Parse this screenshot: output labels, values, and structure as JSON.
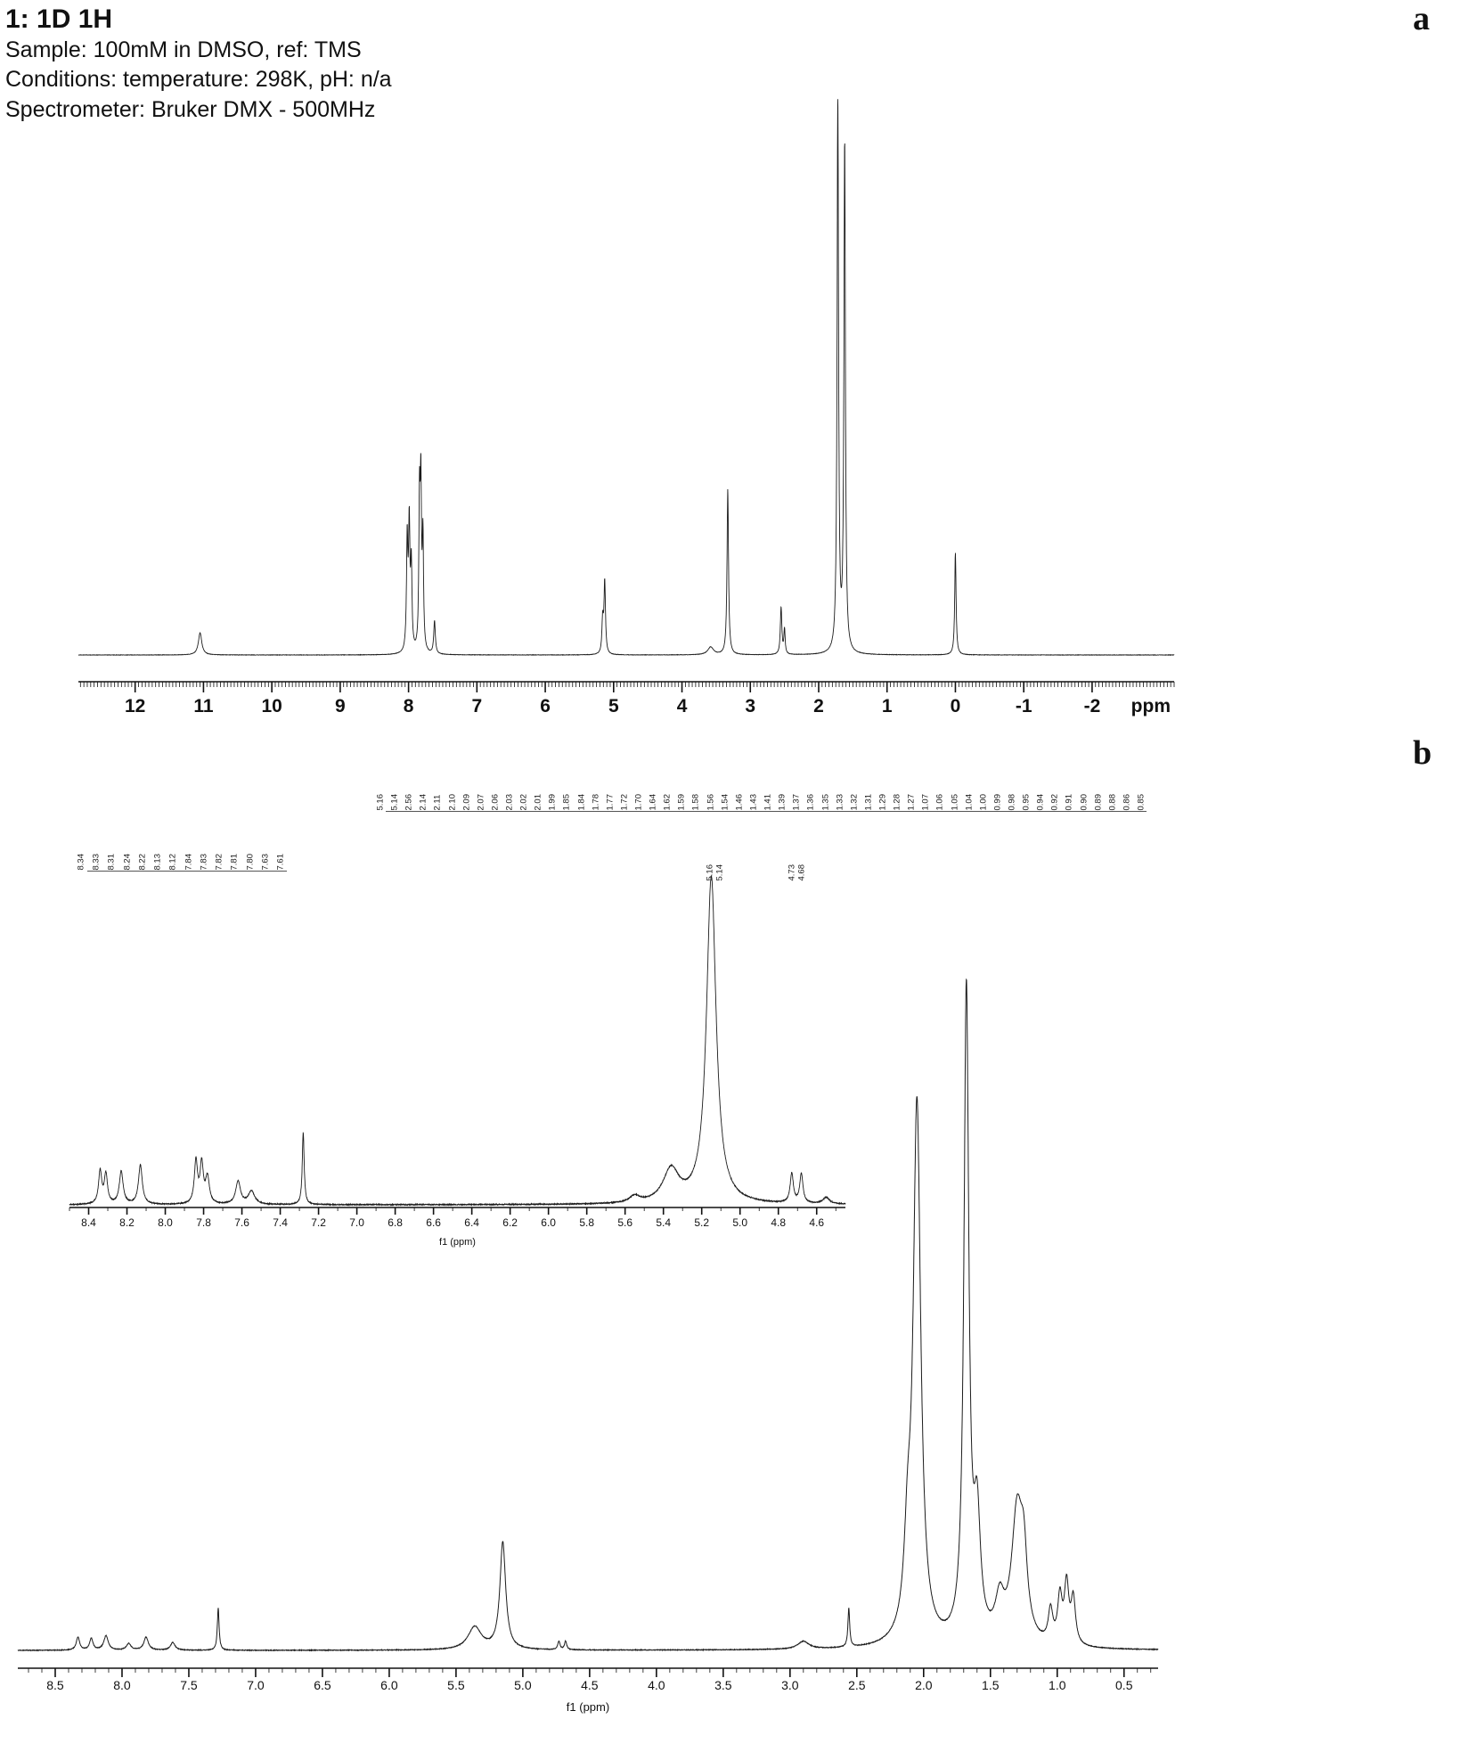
{
  "header": {
    "title": "1: 1D 1H",
    "sample": "Sample: 100mM in DMSO, ref: TMS",
    "conditions": "Conditions: temperature: 298K, pH: n/a",
    "spectrometer": "Spectrometer: Bruker DMX - 500MHz"
  },
  "panel_labels": {
    "a": "a",
    "b": "b"
  },
  "colors": {
    "line": "#1c1c1c",
    "axis": "#111111",
    "text": "#111111"
  },
  "chart_data": [
    {
      "id": "spectrum-a",
      "type": "line",
      "title": "1D 1H NMR full spectrum",
      "xlabel": "ppm",
      "x_range": [
        12.83,
        -3.2
      ],
      "x_ticks": [
        "12",
        "11",
        "10",
        "9",
        "8",
        "7",
        "6",
        "5",
        "4",
        "3",
        "2",
        "1",
        "0",
        "-1",
        "-2"
      ],
      "peaks": [
        {
          "ppm": 11.05,
          "h": 0.04,
          "w": 0.03
        },
        {
          "ppm": 8.02,
          "h": 0.2,
          "w": 0.012
        },
        {
          "ppm": 7.99,
          "h": 0.22,
          "w": 0.012
        },
        {
          "ppm": 7.96,
          "h": 0.15,
          "w": 0.012
        },
        {
          "ppm": 7.84,
          "h": 0.26,
          "w": 0.011
        },
        {
          "ppm": 7.82,
          "h": 0.28,
          "w": 0.011
        },
        {
          "ppm": 7.79,
          "h": 0.2,
          "w": 0.011
        },
        {
          "ppm": 7.62,
          "h": 0.06,
          "w": 0.014
        },
        {
          "ppm": 5.16,
          "h": 0.06,
          "w": 0.013
        },
        {
          "ppm": 5.13,
          "h": 0.13,
          "w": 0.013
        },
        {
          "ppm": 3.58,
          "h": 0.014,
          "w": 0.05
        },
        {
          "ppm": 3.33,
          "h": 0.3,
          "w": 0.013
        },
        {
          "ppm": 2.55,
          "h": 0.085,
          "w": 0.013
        },
        {
          "ppm": 2.5,
          "h": 0.045,
          "w": 0.011
        },
        {
          "ppm": 1.72,
          "h": 1.0,
          "w": 0.013
        },
        {
          "ppm": 1.62,
          "h": 0.92,
          "w": 0.013
        },
        {
          "ppm": 0.0,
          "h": 0.185,
          "w": 0.012
        }
      ]
    },
    {
      "id": "spectrum-b-main",
      "type": "line",
      "title": "1D 1H NMR expanded spectrum",
      "xlabel": "f1 (ppm)",
      "x_range": [
        8.78,
        0.245
      ],
      "x_ticks": [
        "8.5",
        "8.0",
        "7.5",
        "7.0",
        "6.5",
        "6.0",
        "5.5",
        "5.0",
        "4.5",
        "4.0",
        "3.5",
        "3.0",
        "2.5",
        "2.0",
        "1.5",
        "1.0",
        "0.5"
      ],
      "peaks": [
        {
          "ppm": 8.33,
          "h": 0.02,
          "w": 0.015
        },
        {
          "ppm": 8.23,
          "h": 0.018,
          "w": 0.015
        },
        {
          "ppm": 8.12,
          "h": 0.022,
          "w": 0.02
        },
        {
          "ppm": 7.95,
          "h": 0.01,
          "w": 0.02
        },
        {
          "ppm": 7.82,
          "h": 0.02,
          "w": 0.02
        },
        {
          "ppm": 7.62,
          "h": 0.012,
          "w": 0.02
        },
        {
          "ppm": 7.28,
          "h": 0.065,
          "w": 0.008
        },
        {
          "ppm": 5.36,
          "h": 0.035,
          "w": 0.06
        },
        {
          "ppm": 5.15,
          "h": 0.165,
          "w": 0.026
        },
        {
          "ppm": 4.73,
          "h": 0.013,
          "w": 0.01
        },
        {
          "ppm": 4.68,
          "h": 0.013,
          "w": 0.01
        },
        {
          "ppm": 2.9,
          "h": 0.012,
          "w": 0.05
        },
        {
          "ppm": 2.56,
          "h": 0.06,
          "w": 0.008
        },
        {
          "ppm": 2.12,
          "h": 0.12,
          "w": 0.03
        },
        {
          "ppm": 2.05,
          "h": 0.83,
          "w": 0.034
        },
        {
          "ppm": 1.68,
          "h": 1.0,
          "w": 0.022
        },
        {
          "ppm": 1.6,
          "h": 0.18,
          "w": 0.03
        },
        {
          "ppm": 1.43,
          "h": 0.06,
          "w": 0.04
        },
        {
          "ppm": 1.3,
          "h": 0.2,
          "w": 0.05
        },
        {
          "ppm": 1.25,
          "h": 0.1,
          "w": 0.03
        },
        {
          "ppm": 1.05,
          "h": 0.05,
          "w": 0.02
        },
        {
          "ppm": 0.98,
          "h": 0.07,
          "w": 0.02
        },
        {
          "ppm": 0.93,
          "h": 0.09,
          "w": 0.02
        },
        {
          "ppm": 0.88,
          "h": 0.07,
          "w": 0.02
        }
      ]
    },
    {
      "id": "spectrum-b-inset",
      "type": "line",
      "title": "Inset expansion 8.5–4.5 ppm",
      "xlabel": "f1 (ppm)",
      "x_range": [
        8.5,
        4.45
      ],
      "x_ticks": [
        "8.4",
        "8.2",
        "8.0",
        "7.8",
        "7.6",
        "7.4",
        "7.2",
        "7.0",
        "6.8",
        "6.6",
        "6.4",
        "6.2",
        "6.0",
        "5.8",
        "5.6",
        "5.4",
        "5.2",
        "5.0",
        "4.8",
        "4.6"
      ],
      "peaks": [
        {
          "ppm": 8.34,
          "h": 0.1,
          "w": 0.01
        },
        {
          "ppm": 8.31,
          "h": 0.09,
          "w": 0.01
        },
        {
          "ppm": 8.23,
          "h": 0.1,
          "w": 0.012
        },
        {
          "ppm": 8.13,
          "h": 0.12,
          "w": 0.012
        },
        {
          "ppm": 7.84,
          "h": 0.13,
          "w": 0.01
        },
        {
          "ppm": 7.81,
          "h": 0.12,
          "w": 0.01
        },
        {
          "ppm": 7.78,
          "h": 0.08,
          "w": 0.012
        },
        {
          "ppm": 7.62,
          "h": 0.07,
          "w": 0.015
        },
        {
          "ppm": 7.55,
          "h": 0.04,
          "w": 0.02
        },
        {
          "ppm": 7.28,
          "h": 0.22,
          "w": 0.006
        },
        {
          "ppm": 5.55,
          "h": 0.02,
          "w": 0.03
        },
        {
          "ppm": 5.36,
          "h": 0.1,
          "w": 0.05
        },
        {
          "ppm": 5.15,
          "h": 1.0,
          "w": 0.03
        },
        {
          "ppm": 4.73,
          "h": 0.09,
          "w": 0.01
        },
        {
          "ppm": 4.68,
          "h": 0.09,
          "w": 0.01
        },
        {
          "ppm": 4.55,
          "h": 0.02,
          "w": 0.02
        }
      ]
    }
  ],
  "peak_labels": {
    "b_top": [
      "5.16",
      "5.14",
      "2.56",
      "2.14",
      "2.11",
      "2.10",
      "2.09",
      "2.07",
      "2.06",
      "2.03",
      "2.02",
      "2.01",
      "1.99",
      "1.85",
      "1.84",
      "1.78",
      "1.77",
      "1.72",
      "1.70",
      "1.64",
      "1.62",
      "1.59",
      "1.58",
      "1.56",
      "1.54",
      "1.46",
      "1.43",
      "1.41",
      "1.39",
      "1.37",
      "1.36",
      "1.35",
      "1.33",
      "1.32",
      "1.31",
      "1.29",
      "1.28",
      "1.27",
      "1.07",
      "1.06",
      "1.05",
      "1.04",
      "1.00",
      "0.99",
      "0.98",
      "0.95",
      "0.94",
      "0.92",
      "0.91",
      "0.90",
      "0.89",
      "0.88",
      "0.86",
      "0.85"
    ],
    "inset_left": [
      "8.34",
      "8.33",
      "8.31",
      "8.24",
      "8.22",
      "8.13",
      "8.12",
      "7.84",
      "7.83",
      "7.82",
      "7.81",
      "7.80",
      "7.63",
      "7.61"
    ],
    "inset_mid": [
      "5.16",
      "5.14"
    ],
    "inset_right": [
      "4.73",
      "4.68"
    ]
  }
}
